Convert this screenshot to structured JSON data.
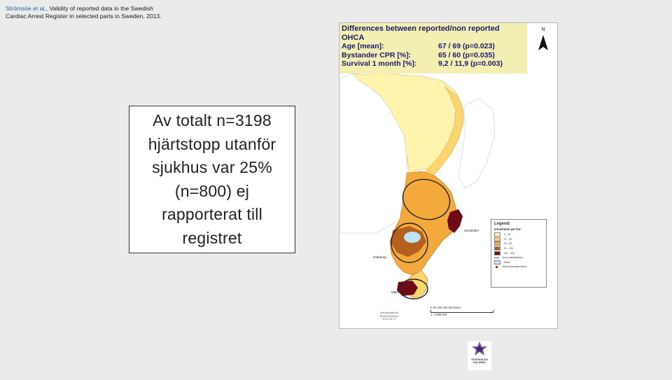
{
  "citation": {
    "authors": "Strömsöe et al.,",
    "title": " Validity of reported data in the Swedish Cardiac Arrest Register in selected parts in Sweden, 2013."
  },
  "main_text": {
    "lines": [
      "Av totalt n=3198",
      "hjärtstopp utanför",
      "sjukhus var 25%",
      "(n=800) ej",
      "rapporterat till",
      "registret"
    ]
  },
  "figure": {
    "heading": "Differences between reported/non reported",
    "subheading": "OHCA",
    "rows": [
      {
        "label": "Age [mean]:",
        "value": "67 / 69 (p=0.023)"
      },
      {
        "label": "Bystander CPR [%]:",
        "value": "65 / 60 (p=0.035)"
      },
      {
        "label": "Survival 1 month [%]:",
        "value": "9,2 / 11,9 (p=0.003)"
      }
    ],
    "north_label": "N",
    "map_legend": {
      "title": "Legend:",
      "subtitle": "Inhabitants per km²",
      "classes": [
        {
          "label": "0 - 10",
          "color": "#fff6b8"
        },
        {
          "label": "11 - 30",
          "color": "#fbd66e"
        },
        {
          "label": "31 - 60",
          "color": "#f3a93c"
        },
        {
          "label": "61 - 200",
          "color": "#b5601f"
        },
        {
          "label": "201 - 300",
          "color": "#6e0b16"
        }
      ],
      "line_label": "Area classification",
      "water_label": "Water",
      "water_color": "#bfe3f5",
      "dot_label": "Most populated cities"
    },
    "cities": [
      "Stockholm",
      "Göteborg",
      "Malmö"
    ],
    "scale_ticks": "0   50  100       200 Kilometer",
    "scale_ratio": "1 :4 988 000",
    "credits": [
      "Antropologi/kun",
      "Arndt Strömsöe",
      "2012-04-27"
    ]
  },
  "logo": {
    "name_line1": "HÖGSKOLAN",
    "name_line2": "DALARNA",
    "colors": {
      "outer": "#7b5ea7",
      "inner": "#3a2a6b"
    }
  }
}
